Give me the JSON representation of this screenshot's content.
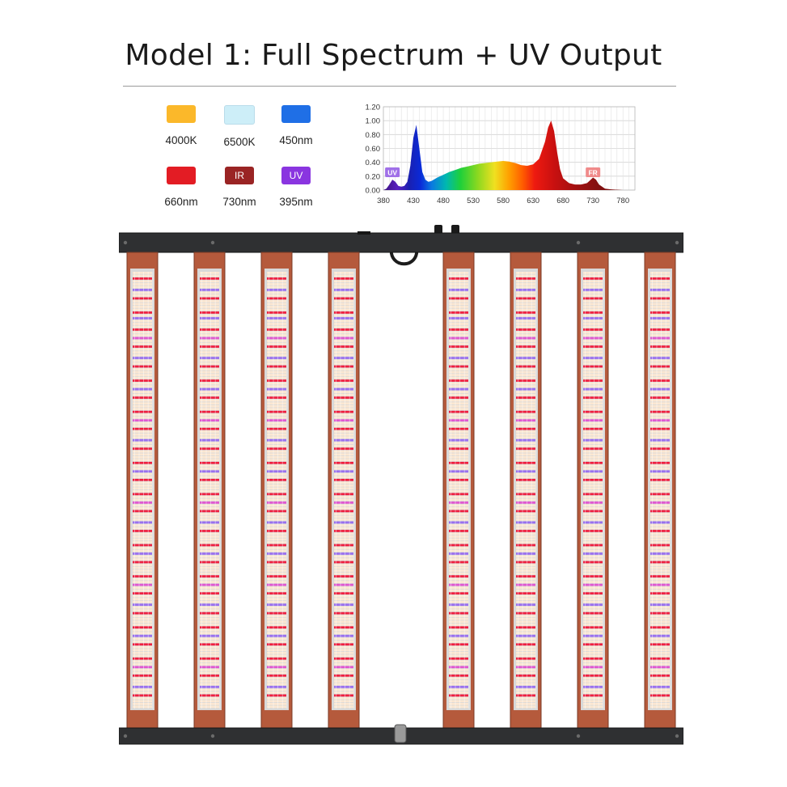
{
  "title": "Model 1: Full Spectrum + UV Output",
  "legend": [
    {
      "label": "4000K",
      "color": "#fbb82a",
      "badge": ""
    },
    {
      "label": "6500K",
      "color": "#cdeef8",
      "badge": ""
    },
    {
      "label": "450nm",
      "color": "#1f6fe6",
      "badge": ""
    },
    {
      "label": "660nm",
      "color": "#e31c24",
      "badge": ""
    },
    {
      "label": "730nm",
      "color": "#9a2424",
      "badge": "IR"
    },
    {
      "label": "395nm",
      "color": "#8a35e0",
      "badge": "UV"
    }
  ],
  "chart_data": {
    "type": "area",
    "title": "",
    "xlabel": "",
    "ylabel": "",
    "x_ticks": [
      380,
      430,
      480,
      530,
      580,
      630,
      680,
      730,
      780
    ],
    "y_ticks": [
      "0.00",
      "0.20",
      "0.40",
      "0.60",
      "0.80",
      "1.00",
      "1.20"
    ],
    "xlim": [
      380,
      800
    ],
    "ylim": [
      0,
      1.2
    ],
    "grid": true,
    "annotations": [
      {
        "text": "UV",
        "x": 395,
        "color": "#a070e8"
      },
      {
        "text": "FR",
        "x": 730,
        "color": "#f08a8a"
      }
    ],
    "series": [
      {
        "x": [
          380,
          385,
          390,
          395,
          400,
          405,
          410,
          415,
          420,
          425,
          430,
          435,
          440,
          445,
          450,
          455,
          460,
          470,
          480,
          490,
          500,
          510,
          520,
          530,
          540,
          550,
          560,
          570,
          580,
          590,
          600,
          610,
          620,
          630,
          640,
          650,
          655,
          660,
          665,
          670,
          675,
          680,
          690,
          700,
          710,
          720,
          725,
          730,
          735,
          740,
          750,
          760,
          780
        ],
        "y": [
          0.0,
          0.02,
          0.08,
          0.15,
          0.12,
          0.06,
          0.05,
          0.06,
          0.12,
          0.35,
          0.75,
          0.94,
          0.6,
          0.26,
          0.15,
          0.12,
          0.13,
          0.18,
          0.22,
          0.26,
          0.29,
          0.32,
          0.34,
          0.36,
          0.38,
          0.39,
          0.4,
          0.41,
          0.42,
          0.41,
          0.39,
          0.36,
          0.35,
          0.37,
          0.45,
          0.7,
          0.9,
          1.0,
          0.85,
          0.55,
          0.3,
          0.17,
          0.1,
          0.08,
          0.08,
          0.1,
          0.14,
          0.18,
          0.15,
          0.08,
          0.02,
          0.01,
          0.0
        ]
      }
    ]
  },
  "fixture": {
    "bar_count": 8,
    "frame_color": "#2f3032",
    "bar_edge_color": "#b55a3c"
  }
}
